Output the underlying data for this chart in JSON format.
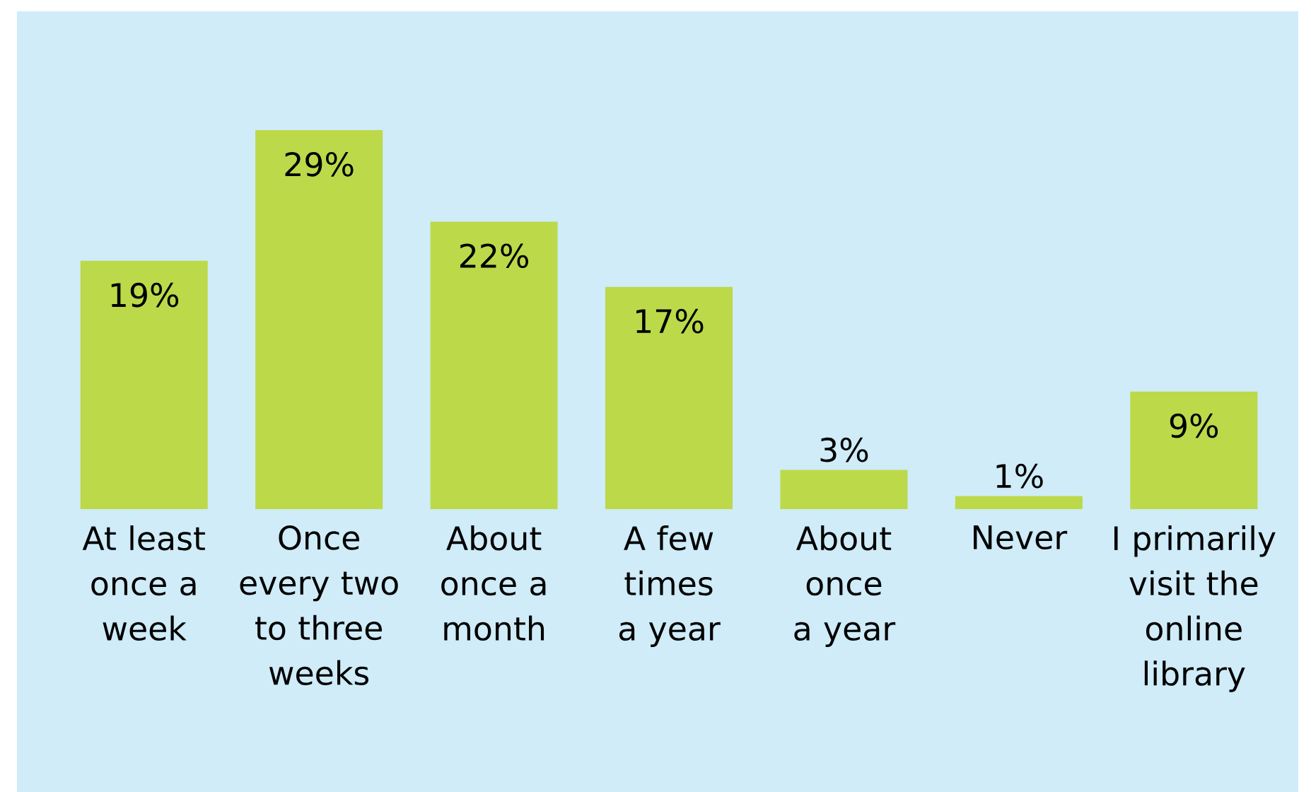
{
  "chart_data": {
    "type": "bar",
    "categories": [
      "At least once a week",
      "Once every two to three weeks",
      "About once a month",
      "A few times a year",
      "About once a year",
      "Never",
      "I primarily visit the online library"
    ],
    "values": [
      19,
      29,
      22,
      17,
      3,
      1,
      9
    ],
    "value_labels": [
      "19%",
      "29%",
      "22%",
      "17%",
      "3%",
      "1%",
      "9%"
    ],
    "color": "#bcd94a"
  }
}
